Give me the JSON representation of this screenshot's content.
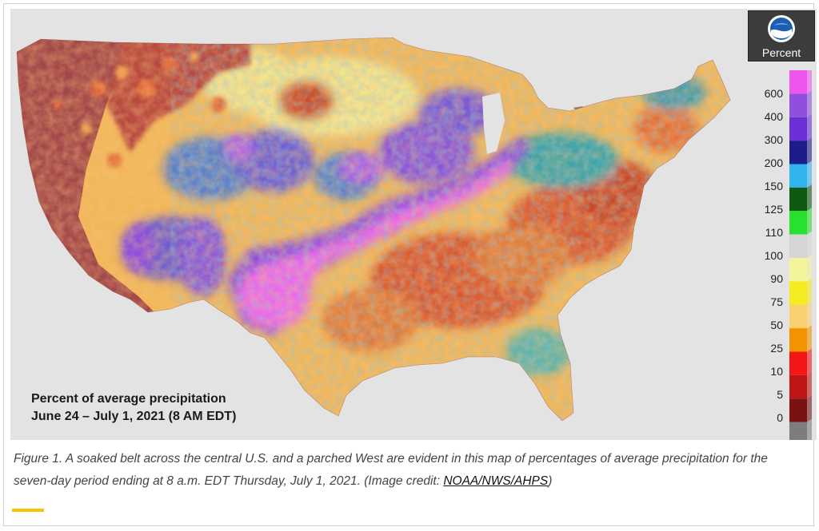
{
  "map": {
    "title_line1": "Percent of average precipitation",
    "title_line2": "June 24 – July 1, 2021 (8 AM EDT)",
    "region": "contiguous-united-states",
    "colors": {
      "background": "#e3e3e3",
      "dry_west": "#a3484a",
      "soaked_belt": "#f07cf0"
    }
  },
  "legend": {
    "title": "Percent",
    "logo": "noaa-logo",
    "labels": [
      "600",
      "400",
      "300",
      "200",
      "150",
      "125",
      "110",
      "100",
      "90",
      "75",
      "50",
      "25",
      "10",
      "5",
      "0"
    ],
    "colors": [
      "#ee55ee",
      "#9050dd",
      "#6a2fd6",
      "#1c1c8c",
      "#30b4ee",
      "#0e5a12",
      "#28e02e",
      "#d6d6d6",
      "#f4f49a",
      "#f4ec20",
      "#f9d070",
      "#f49300",
      "#f21616",
      "#be1616",
      "#7a1212",
      "#7d7d7d"
    ]
  },
  "caption": {
    "text": "Figure 1. A soaked belt across the central U.S. and a parched West are evident in this map of percentages of average precipitation for the seven-day period ending at 8 a.m. EDT Thursday, July 1, 2021. (Image credit: ",
    "link": "NOAA/NWS/AHPS",
    "suffix": ")"
  }
}
